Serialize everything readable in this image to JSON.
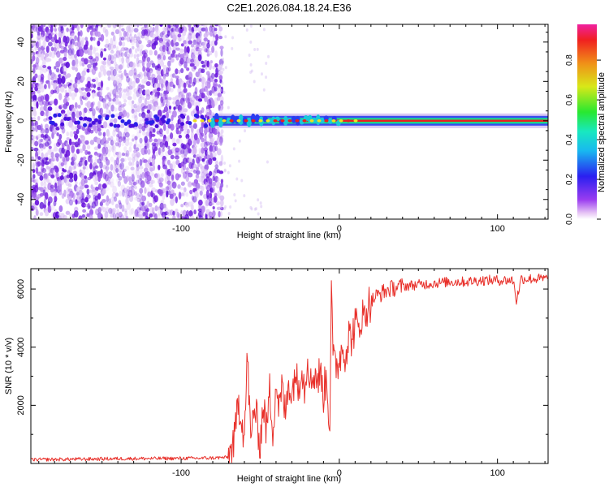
{
  "figure_title": "C2E1.2026.084.18.24.E36",
  "colors": {
    "snr_line": "#e8302a",
    "spectrum_core": "#e82020",
    "spectrum_mid": "#18e08a",
    "spectrum_edge": "#2a3cf0",
    "noise": "#7a2ae0"
  },
  "chart_data": [
    {
      "type": "heatmap",
      "title": "",
      "xlabel": "Height of straight line (km)",
      "ylabel": "Frequency (Hz)",
      "xlim": [
        -195,
        132
      ],
      "ylim": [
        -50,
        49
      ],
      "xticks": [
        -100,
        0,
        100
      ],
      "xtick_labels": [
        "-100",
        "0",
        "100"
      ],
      "yticks": [
        -40,
        -20,
        0,
        20,
        40
      ],
      "ytick_labels": [
        "-40",
        "-20",
        "0",
        "20",
        "40"
      ],
      "grid": false,
      "description_series": [
        {
          "name": "noise region",
          "x_range": [
            -195,
            -75
          ],
          "freq_range": [
            -50,
            49
          ]
        },
        {
          "name": "signal band",
          "x_range": [
            -75,
            132
          ],
          "center_freq": 0,
          "approx_halfwidth_hz": 2
        }
      ],
      "colorbar": {
        "label": "Normalized spectral amplitude",
        "range": [
          0,
          0.98
        ],
        "ticks": [
          0.0,
          0.2,
          0.4,
          0.6,
          0.8
        ],
        "tick_labels": [
          "0.0",
          "0.2",
          "0.4",
          "0.6",
          "0.8"
        ]
      }
    },
    {
      "type": "line",
      "title": "",
      "xlabel": "Height of straight line (km)",
      "ylabel": "SNR (10 * v/v)",
      "xlim": [
        -195,
        132
      ],
      "ylim": [
        0,
        6700
      ],
      "xticks": [
        -100,
        0,
        100
      ],
      "xtick_labels": [
        "-100",
        "0",
        "100"
      ],
      "yticks": [
        2000,
        4000,
        6000
      ],
      "ytick_labels": [
        "2000",
        "4000",
        "6000"
      ],
      "grid": false,
      "series": [
        {
          "name": "SNR",
          "x": [
            -195,
            -180,
            -160,
            -140,
            -120,
            -100,
            -90,
            -80,
            -70,
            -66,
            -64,
            -62,
            -60,
            -58,
            -56,
            -54,
            -52,
            -50,
            -48,
            -46,
            -44,
            -42,
            -40,
            -38,
            -36,
            -34,
            -32,
            -30,
            -28,
            -26,
            -24,
            -22,
            -20,
            -18,
            -16,
            -14,
            -12,
            -10,
            -8,
            -6,
            -5,
            -4,
            -2,
            0,
            2,
            4,
            6,
            8,
            10,
            12,
            14,
            16,
            18,
            20,
            22,
            25,
            28,
            32,
            36,
            40,
            50,
            60,
            70,
            80,
            90,
            100,
            110,
            112,
            115,
            120,
            132
          ],
          "y": [
            130,
            140,
            150,
            165,
            170,
            175,
            180,
            190,
            210,
            800,
            2200,
            1700,
            900,
            3800,
            600,
            2000,
            1400,
            700,
            2100,
            1100,
            2500,
            1200,
            2800,
            1900,
            2600,
            1600,
            3000,
            2200,
            3300,
            2500,
            3500,
            2600,
            3700,
            2700,
            3200,
            2900,
            3100,
            2400,
            3000,
            1200,
            6500,
            3500,
            3300,
            3600,
            4000,
            3800,
            4400,
            4300,
            4800,
            4600,
            5100,
            5000,
            5500,
            5500,
            5700,
            5800,
            5900,
            6000,
            6050,
            6100,
            6150,
            6200,
            6250,
            6250,
            6300,
            6300,
            6300,
            5600,
            6350,
            6350,
            6350
          ]
        }
      ]
    }
  ]
}
